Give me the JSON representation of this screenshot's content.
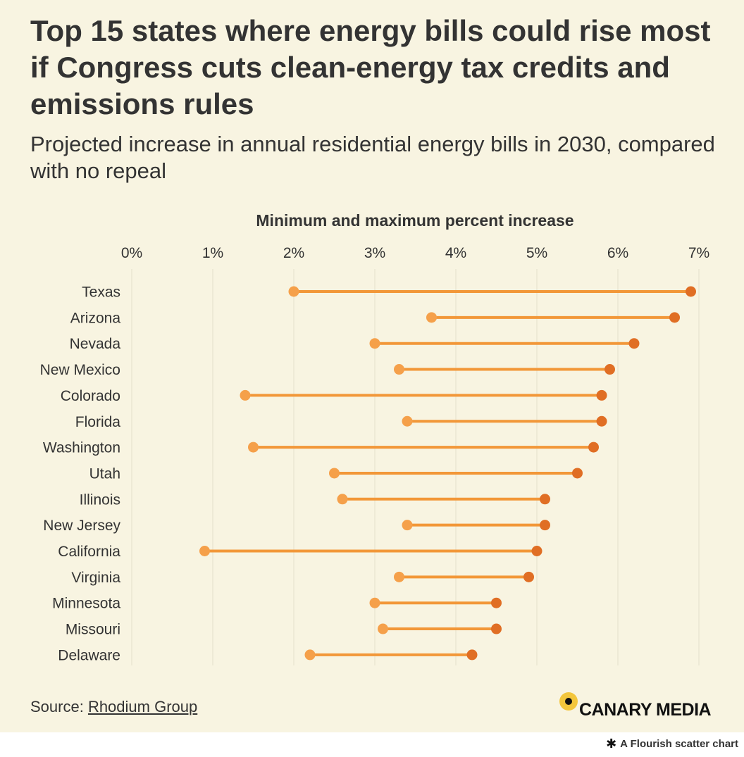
{
  "title": "Top 15 states where energy bills could rise most if Congress cuts clean-energy tax credits and emissions rules",
  "subtitle": "Projected increase in annual residential energy bills in 2030, compared with no repeal",
  "source": {
    "prefix": "Source: ",
    "link_text": "Rhodium Group"
  },
  "logo": {
    "text": "CANARY MEDIA",
    "icon": "canary-dot-icon"
  },
  "footer": {
    "icon": "flourish-asterisk-icon",
    "text": "A Flourish scatter chart"
  },
  "colors": {
    "background": "#f8f4e1",
    "min_point": "#f5a04a",
    "max_point": "#e06e24",
    "connector": "#f29738",
    "grid": "#ebe6d2",
    "text": "#333333"
  },
  "chart_data": {
    "type": "scatter",
    "subtype": "dumbbell",
    "axis_title": "Minimum and maximum percent increase",
    "xlim": [
      0,
      7
    ],
    "x_ticks": [
      "0%",
      "1%",
      "2%",
      "3%",
      "4%",
      "5%",
      "6%",
      "7%"
    ],
    "x_axis_position": "top",
    "grid": true,
    "categories": [
      "Texas",
      "Arizona",
      "Nevada",
      "New Mexico",
      "Colorado",
      "Florida",
      "Washington",
      "Utah",
      "Illinois",
      "New Jersey",
      "California",
      "Virginia",
      "Minnesota",
      "Missouri",
      "Delaware"
    ],
    "series": [
      {
        "values": [
          2.0,
          3.7,
          3.0,
          3.3,
          1.4,
          3.4,
          1.5,
          2.5,
          2.6,
          3.4,
          0.9,
          3.3,
          3.0,
          3.1,
          2.2
        ]
      },
      {
        "values": [
          6.9,
          6.7,
          6.2,
          5.9,
          5.8,
          5.8,
          5.7,
          5.5,
          5.1,
          5.1,
          5.0,
          4.9,
          4.5,
          4.5,
          4.2
        ]
      }
    ]
  }
}
